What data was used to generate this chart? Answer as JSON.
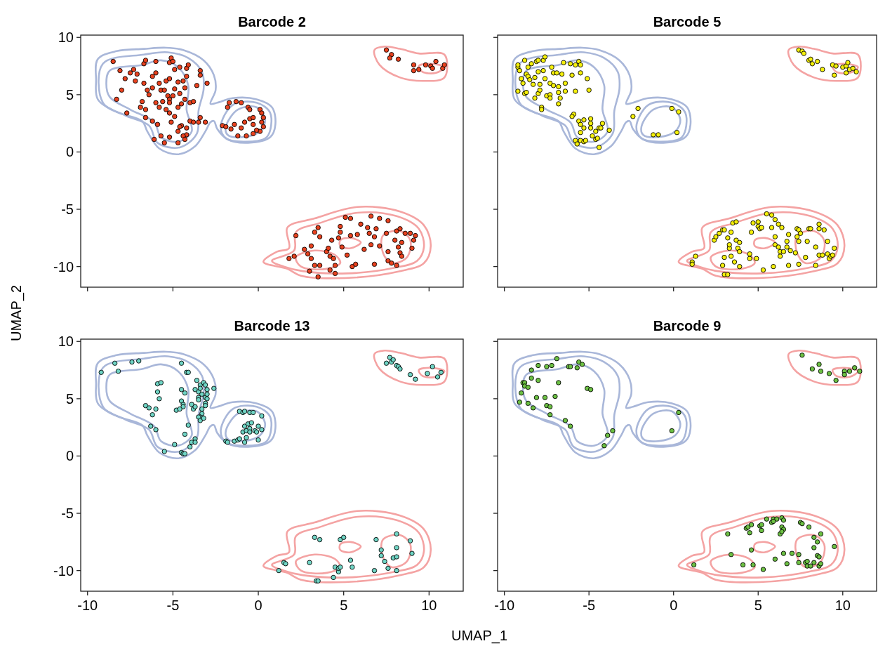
{
  "chart_data": [
    {
      "type": "scatter",
      "title": "Barcode 2",
      "xlim": [
        -10.4,
        12.0
      ],
      "ylim": [
        -11.8,
        10.2
      ],
      "xticks": [
        -10,
        -5,
        0,
        5,
        10
      ],
      "yticks": [
        -10,
        -5,
        0,
        5,
        10
      ],
      "tick_labels": "y",
      "grid": false,
      "marker": "circle",
      "series": [
        {
          "color": "#e8411e",
          "x": [
            -8.5,
            -8.1,
            -7.8,
            -8.3,
            -7.7,
            -8.0,
            -7.5,
            -7.3,
            -7.1,
            -6.7,
            -6.6,
            -6.0,
            -7.2,
            -6.7,
            -6.5,
            -6.8,
            -6.6,
            -6.6,
            -6.9,
            -6.2,
            -6.1,
            -5.5,
            -5.7,
            -5.9,
            -6.4,
            -6.2,
            -6.0,
            -6.2,
            -5.8,
            -5.7,
            -6.0,
            -5.8,
            -5.6,
            -5.5,
            -5.4,
            -5.2,
            -5.2,
            -5.1,
            -5.0,
            -5.3,
            -5.2,
            -5.0,
            -4.9,
            -5.2,
            -5.4,
            -5.2,
            -4.9,
            -5.1,
            -4.9,
            -4.6,
            -4.7,
            -4.6,
            -4.7,
            -4.5,
            -4.4,
            -4.3,
            -4.2,
            -4.2,
            -4.1,
            -4.3,
            -4.0,
            -3.8,
            -4.5,
            -4.6,
            -4.7,
            -4.2,
            -4.2,
            -4.4,
            -4.3,
            -4.7,
            -5.2,
            -4.0,
            -3.8,
            -3.5,
            -3.4,
            -3.1,
            -3.4,
            -3.4,
            -3.0,
            -3.6,
            -2.1,
            -1.9,
            -1.7,
            -1.8,
            -1.6,
            -1.4,
            -1.3,
            -1.0,
            -1.2,
            -1.0,
            -0.8,
            -0.7,
            -0.6,
            -0.5,
            -0.5,
            -0.3,
            -0.3,
            -0.3,
            0.1,
            0.2,
            0.3,
            0.2,
            0.3,
            0.1,
            -0.1,
            7.5,
            7.8,
            7.7,
            8.2,
            9.1,
            9.1,
            9.4,
            9.8,
            10.1,
            10.2,
            10.4,
            10.8,
            10.9,
            1.8,
            2.1,
            2.2,
            2.7,
            3.1,
            3.3,
            3.5,
            3.6,
            2.9,
            3.1,
            3.3,
            3.0,
            3.5,
            3.6,
            4.0,
            4.1,
            4.2,
            4.3,
            4.4,
            4.5,
            4.2,
            4.5,
            4.7,
            4.8,
            4.8,
            4.9,
            5.1,
            5.2,
            5.4,
            5.4,
            5.5,
            5.7,
            5.8,
            6.0,
            6.2,
            6.4,
            6.5,
            6.6,
            6.6,
            6.8,
            6.9,
            7.1,
            7.1,
            6.8,
            7.5,
            7.6,
            7.6,
            7.6,
            7.8,
            8.0,
            8.1,
            8.1,
            8.2,
            8.3,
            8.4,
            8.4,
            8.3,
            8.6,
            8.9,
            9.0,
            9.1,
            9.2
          ],
          "values": [
            7.9,
            7.1,
            6.4,
            4.6,
            3.4,
            5.4,
            6.9,
            7.2,
            6.8,
            7.7,
            8.0,
            7.9,
            6.2,
            6.0,
            5.4,
            4.4,
            3.7,
            3.0,
            3.9,
            2.7,
            1.1,
            0.8,
            1.4,
            2.4,
            5.0,
            6.6,
            6.9,
            5.6,
            6.0,
            5.4,
            4.3,
            3.9,
            4.4,
            5.4,
            6.2,
            6.4,
            7.8,
            8.2,
            7.9,
            4.9,
            4.6,
            4.9,
            5.5,
            4.3,
            3.7,
            3.4,
            3.1,
            2.6,
            7.2,
            7.4,
            6.1,
            5.1,
            3.9,
            4.2,
            6.2,
            5.6,
            6.6,
            7.3,
            7.6,
            4.6,
            4.3,
            4.4,
            2.3,
            2.2,
            1.8,
            2.1,
            1.5,
            1.4,
            1.1,
            0.8,
            1.3,
            2.7,
            2.6,
            2.6,
            3.0,
            2.6,
            7.1,
            6.7,
            6.0,
            5.8,
            2.3,
            2.2,
            4.3,
            3.9,
            2.0,
            2.4,
            4.4,
            4.3,
            1.4,
            2.1,
            2.6,
            1.4,
            3.9,
            3.7,
            2.9,
            2.4,
            1.6,
            3.0,
            3.7,
            3.4,
            3.0,
            2.6,
            2.2,
            1.8,
            1.9,
            8.9,
            8.5,
            8.2,
            8.1,
            7.6,
            7.1,
            7.2,
            7.6,
            7.5,
            7.3,
            7.9,
            7.3,
            7.6,
            -9.3,
            -9.1,
            -7.3,
            -8.5,
            -8.2,
            -7.0,
            -6.6,
            -7.4,
            -8.9,
            -9.3,
            -9.9,
            -10.4,
            -10.9,
            -9.9,
            -8.7,
            -8.4,
            -9.1,
            -7.7,
            -9.3,
            -9.9,
            -10.3,
            -10.6,
            -7.5,
            -7.0,
            -6.5,
            -8.3,
            -5.7,
            -9.0,
            -7.3,
            -5.8,
            -10.0,
            -9.8,
            -7.2,
            -6.3,
            -8.5,
            -6.6,
            -7.1,
            -5.6,
            -8.1,
            -7.4,
            -6.7,
            -5.8,
            -8.2,
            -9.8,
            -7.1,
            -6.0,
            -8.7,
            -9.5,
            -9.7,
            -7.7,
            -9.9,
            -6.9,
            -8.3,
            -8.8,
            -7.9,
            -9.1,
            -6.7,
            -7.1,
            -7.1,
            -8.4,
            -7.7,
            -7.3
          ]
        }
      ]
    },
    {
      "type": "scatter",
      "title": "Barcode 5",
      "xlim": [
        -10.4,
        12.0
      ],
      "ylim": [
        -11.8,
        10.2
      ],
      "xticks": [
        -10,
        -5,
        0,
        5,
        10
      ],
      "yticks": [
        -10,
        -5,
        0,
        5,
        10
      ],
      "tick_labels": false,
      "grid": false,
      "marker": "circle",
      "series": [
        {
          "color": "#f5f00a",
          "x": [
            -9.2,
            -9.2,
            -9.1,
            -9.2,
            -9.0,
            -8.9,
            -8.8,
            -8.8,
            -8.7,
            -8.7,
            -8.6,
            -8.6,
            -8.5,
            -8.4,
            -8.3,
            -8.2,
            -8.2,
            -8.1,
            -8.0,
            -8.0,
            -8.0,
            -7.9,
            -7.9,
            -7.8,
            -7.8,
            -7.7,
            -7.6,
            -7.7,
            -7.6,
            -7.5,
            -7.3,
            -7.3,
            -7.3,
            -7.2,
            -7.1,
            -7.1,
            -6.9,
            -6.8,
            -6.8,
            -6.8,
            -6.7,
            -6.6,
            -6.5,
            -6.4,
            -6.4,
            -6.1,
            -6.0,
            -5.8,
            -5.8,
            -5.6,
            -5.5,
            -5.5,
            -5.1,
            -5.0,
            -5.9,
            -6.0,
            -5.6,
            -5.5,
            -5.3,
            -5.5,
            -5.3,
            -5.8,
            -5.7,
            -5.5,
            -5.3,
            -5.2,
            -4.9,
            -4.9,
            -4.9,
            -4.8,
            -4.6,
            -4.6,
            -4.4,
            -4.5,
            -4.2,
            -4.4,
            -4.3,
            -3.8,
            -2.4,
            -2.1,
            -1.2,
            -0.9,
            -0.1,
            0.3,
            0.2,
            7.4,
            7.6,
            7.7,
            8.0,
            8.1,
            8.2,
            8.5,
            8.8,
            9.4,
            9.6,
            9.5,
            10.0,
            10.2,
            10.3,
            10.4,
            10.2,
            10.6,
            10.8,
            1.1,
            1.1,
            1.3,
            2.4,
            2.5,
            2.7,
            2.9,
            3.0,
            2.9,
            3.0,
            3.2,
            3.0,
            3.2,
            3.3,
            3.3,
            3.4,
            3.4,
            3.5,
            3.6,
            3.7,
            3.7,
            3.8,
            3.9,
            3.9,
            3.9,
            4.5,
            4.5,
            4.6,
            4.7,
            4.9,
            5.0,
            5.0,
            5.1,
            5.2,
            5.3,
            5.5,
            5.8,
            5.8,
            5.9,
            6.0,
            6.0,
            6.0,
            6.2,
            6.2,
            6.3,
            6.3,
            6.4,
            6.5,
            6.7,
            6.7,
            6.8,
            6.8,
            6.9,
            7.2,
            7.3,
            7.3,
            7.4,
            7.4,
            7.4,
            7.5,
            7.8,
            7.9,
            8.0,
            8.1,
            8.4,
            8.4,
            8.6,
            8.6,
            8.6,
            8.8,
            8.9,
            9.1,
            9.1,
            9.2,
            9.3,
            9.4,
            9.5
          ],
          "values": [
            7.4,
            7.6,
            7.1,
            5.3,
            6.4,
            6.0,
            5.1,
            8.0,
            5.2,
            6.8,
            7.4,
            6.6,
            6.3,
            7.7,
            5.9,
            6.5,
            4.7,
            7.9,
            5.1,
            8.0,
            7.0,
            5.9,
            5.4,
            3.9,
            3.7,
            7.1,
            6.4,
            8.0,
            8.3,
            4.9,
            5.0,
            4.7,
            6.0,
            7.4,
            6.9,
            5.8,
            6.9,
            5.7,
            4.2,
            5.2,
            4.7,
            6.8,
            7.8,
            5.3,
            6.0,
            7.7,
            6.7,
            7.6,
            5.3,
            7.9,
            7.6,
            6.9,
            6.4,
            5.4,
            3.3,
            3.1,
            2.7,
            2.4,
            2.8,
            1.7,
            2.1,
            1.0,
            0.7,
            1.0,
            0.9,
            1.0,
            2.9,
            2.5,
            2.1,
            1.4,
            1.1,
            1.8,
            2.1,
            1.2,
            2.5,
            0.4,
            2.1,
            1.9,
            3.1,
            3.8,
            1.5,
            1.5,
            3.8,
            3.5,
            1.7,
            8.9,
            8.8,
            8.6,
            8.0,
            8.1,
            7.7,
            7.9,
            7.2,
            7.6,
            7.5,
            6.7,
            7.4,
            7.5,
            7.8,
            7.2,
            6.9,
            7.3,
            7.0,
            -9.6,
            -9.8,
            -9.1,
            -7.7,
            -7.4,
            -7.1,
            -6.8,
            -6.8,
            -9.9,
            -10.7,
            -10.7,
            -9.2,
            -7.5,
            -8.4,
            -8.1,
            -9.1,
            -7.0,
            -6.2,
            -9.6,
            -6.1,
            -7.7,
            -8.4,
            -8.7,
            -7.9,
            -10.0,
            -9.3,
            -8.9,
            -7.0,
            -6.2,
            -9.3,
            -6.1,
            -6.5,
            -6.7,
            -6.6,
            -10.3,
            -5.4,
            -5.5,
            -6.6,
            -10.0,
            -7.4,
            -8.1,
            -5.9,
            -6.3,
            -8.3,
            -8.7,
            -9.1,
            -6.6,
            -8.7,
            -7.8,
            -8.3,
            -7.2,
            -9.9,
            -8.6,
            -8.8,
            -6.7,
            -7.4,
            -7.8,
            -9.8,
            -6.8,
            -7.1,
            -9.2,
            -7.8,
            -6.7,
            -6.7,
            -8.3,
            -9.9,
            -9.0,
            -6.7,
            -6.3,
            -9.0,
            -6.8,
            -7.8,
            -8.9,
            -9.3,
            -9.1,
            -9.0,
            -8.4
          ]
        }
      ]
    },
    {
      "type": "scatter",
      "title": "Barcode 13",
      "xlabel": "UMAP_1",
      "ylabel": "UMAP_2",
      "xlim": [
        -10.4,
        12.0
      ],
      "ylim": [
        -11.8,
        10.2
      ],
      "xticks": [
        -10,
        -5,
        0,
        5,
        10
      ],
      "yticks": [
        -10,
        -5,
        0,
        5,
        10
      ],
      "grid": false,
      "marker": "circle",
      "series": [
        {
          "color": "#6fd4c4",
          "x": [
            -9.2,
            -8.4,
            -8.2,
            -7.4,
            -7.0,
            -4.5,
            -4.2,
            -4.1,
            -5.9,
            -5.7,
            -5.9,
            -5.8,
            -6.6,
            -6.4,
            -6.0,
            -6.2,
            -6.3,
            -6.0,
            -5.5,
            -4.9,
            -4.5,
            -4.3,
            -4.5,
            -4.4,
            -4.4,
            -4.8,
            -4.6,
            -4.3,
            -4.1,
            -4.0,
            -3.9,
            -3.7,
            -3.7,
            -4.5,
            -4.4,
            -4.3,
            -3.9,
            -3.8,
            -3.7,
            -3.6,
            -3.7,
            -3.5,
            -3.5,
            -3.5,
            -3.4,
            -3.4,
            -3.3,
            -3.3,
            -3.3,
            -3.4,
            -3.5,
            -3.4,
            -3.2,
            -3.2,
            -3.1,
            -3.1,
            -3.0,
            -3.0,
            -3.0,
            -3.1,
            -3.1,
            -2.6,
            -1.9,
            -1.8,
            -1.4,
            -1.2,
            -1.1,
            -1.1,
            -0.9,
            -0.8,
            -0.5,
            -0.3,
            0.2,
            -0.8,
            -0.9,
            -0.7,
            -0.6,
            -0.4,
            -0.5,
            -0.5,
            -0.2,
            -0.1,
            0.0,
            0.2,
            0.0,
            -0.7,
            -0.8,
            7.7,
            7.5,
            7.8,
            7.9,
            8.1,
            8.2,
            8.3,
            8.9,
            9.2,
            9.9,
            10.2,
            10.5,
            10.7,
            1.2,
            1.5,
            1.6,
            3.0,
            3.3,
            3.6,
            3.4,
            3.5,
            4.4,
            4.5,
            4.7,
            4.7,
            4.8,
            4.8,
            5.0,
            5.4,
            5.5,
            6.8,
            6.9,
            7.2,
            7.2,
            7.4,
            7.6,
            7.9,
            8.1,
            8.1,
            8.1,
            8.1,
            8.9,
            9.0
          ],
          "values": [
            7.3,
            8.1,
            7.4,
            8.2,
            8.3,
            8.1,
            7.3,
            7.3,
            6.3,
            6.4,
            5.6,
            5.0,
            4.4,
            4.2,
            4.1,
            3.6,
            2.6,
            2.3,
            0.4,
            1.0,
            5.8,
            5.5,
            4.8,
            4.5,
            4.3,
            4.0,
            4.1,
            1.9,
            2.7,
            0.8,
            1.2,
            1.5,
            1.2,
            0.3,
            0.2,
            0.2,
            4.5,
            4.1,
            4.3,
            6.6,
            5.8,
            5.6,
            5.1,
            4.9,
            6.2,
            5.9,
            5.4,
            4.1,
            3.7,
            3.4,
            3.4,
            3.1,
            3.3,
            6.4,
            5.1,
            6.2,
            5.8,
            5.4,
            5.0,
            4.6,
            4.4,
            5.9,
            1.3,
            1.2,
            1.3,
            1.4,
            1.5,
            3.9,
            3.8,
            3.9,
            3.8,
            3.8,
            3.5,
            2.6,
            2.1,
            2.2,
            2.8,
            2.9,
            2.4,
            2.1,
            2.2,
            2.1,
            2.6,
            2.3,
            1.4,
            1.6,
            1.2,
            8.6,
            8.1,
            8.2,
            8.4,
            7.9,
            7.8,
            7.6,
            7.1,
            6.7,
            7.2,
            7.8,
            6.9,
            7.3,
            -10.0,
            -9.3,
            -9.4,
            -9.3,
            -7.1,
            -7.3,
            -10.9,
            -10.9,
            -10.6,
            -9.7,
            -10.1,
            -9.8,
            -9.7,
            -7.3,
            -7.1,
            -9.1,
            -9.7,
            -10.0,
            -7.3,
            -8.2,
            -8.7,
            -9.2,
            -9.8,
            -8.9,
            -6.8,
            -8.0,
            -8.8,
            -10.0,
            -7.4,
            -8.5
          ]
        }
      ]
    },
    {
      "type": "scatter",
      "title": "Barcode 9",
      "xlim": [
        -10.4,
        12.0
      ],
      "ylim": [
        -11.8,
        10.2
      ],
      "xticks": [
        -10,
        -5,
        0,
        5,
        10
      ],
      "yticks": [
        -10,
        -5,
        0,
        5,
        10
      ],
      "tick_labels": "x",
      "grid": false,
      "marker": "circle",
      "series": [
        {
          "color": "#6cc043",
          "x": [
            -6.9,
            -8.0,
            -7.5,
            -7.2,
            -6.2,
            -6.1,
            -5.6,
            -5.4,
            -5.7,
            -8.4,
            -8.4,
            -8.0,
            -8.9,
            -8.8,
            -8.8,
            -8.6,
            -9.0,
            -9.1,
            -8.6,
            -8.3,
            -8.1,
            -7.6,
            -7.0,
            -6.8,
            -7.5,
            -7.3,
            -7.3,
            -6.4,
            -6.1,
            -5.1,
            -4.9,
            -3.6,
            -3.9,
            -4.1,
            0.3,
            -0.1,
            7.6,
            8.2,
            8.6,
            8.7,
            9.2,
            9.6,
            10.1,
            10.1,
            10.4,
            10.7,
            11.0,
            1.2,
            3.2,
            3.4,
            4.1,
            4.3,
            4.4,
            4.6,
            4.5,
            4.6,
            4.7,
            5.1,
            5.2,
            5.2,
            5.3,
            5.5,
            5.8,
            5.9,
            6.1,
            5.9,
            6.0,
            6.4,
            6.4,
            6.5,
            6.5,
            6.3,
            6.4,
            6.5,
            6.7,
            7.0,
            7.4,
            7.4,
            7.5,
            7.6,
            7.8,
            7.9,
            7.9,
            8.0,
            8.1,
            8.3,
            8.3,
            8.3,
            8.5,
            8.5,
            8.6,
            8.6,
            8.7,
            8.7,
            9.5
          ],
          "values": [
            8.5,
            7.9,
            7.8,
            7.9,
            7.8,
            7.8,
            8.2,
            8.0,
            7.7,
            7.5,
            6.8,
            6.6,
            6.4,
            6.4,
            6.1,
            6.0,
            5.5,
            4.7,
            4.6,
            4.2,
            5.1,
            5.1,
            5.2,
            6.4,
            4.4,
            4.3,
            3.6,
            3.1,
            2.6,
            5.9,
            5.8,
            2.2,
            1.8,
            0.9,
            3.8,
            2.2,
            8.8,
            7.6,
            8.0,
            7.4,
            7.2,
            6.6,
            7.4,
            7.1,
            7.4,
            7.7,
            7.4,
            -9.5,
            -6.8,
            -8.6,
            -9.5,
            -6.3,
            -6.2,
            -6.0,
            -6.7,
            -8.2,
            -9.5,
            -6.1,
            -6.0,
            -6.5,
            -9.9,
            -5.5,
            -5.8,
            -5.5,
            -5.5,
            -5.7,
            -9.0,
            -6.2,
            -5.4,
            -5.6,
            -6.4,
            -6.8,
            -6.6,
            -8.5,
            -9.4,
            -8.5,
            -9.3,
            -8.6,
            -5.8,
            -5.9,
            -9.3,
            -9.6,
            -9.2,
            -6.2,
            -9.6,
            -9.3,
            -7.1,
            -8.0,
            -7.5,
            -8.7,
            -8.8,
            -9.6,
            -9.4,
            -6.8,
            -7.9
          ]
        }
      ]
    }
  ]
}
